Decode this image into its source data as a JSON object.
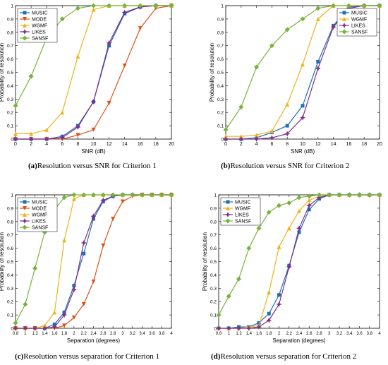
{
  "colors": {
    "MUSIC": "#1f6fb4",
    "MODE": "#d95319",
    "WGMF": "#f0b21c",
    "LIKES": "#7e2f8e",
    "SANSF": "#76b43b"
  },
  "chart_data": [
    {
      "type": "line",
      "caption_label": "(a)",
      "caption": "Resolution versus SNR for Criterion 1",
      "xlabel": "SNR (dB)",
      "ylabel": "Probability of resolution",
      "xlim": [
        0,
        20
      ],
      "ylim": [
        0,
        1
      ],
      "xticks": [
        "0",
        "2",
        "4",
        "6",
        "8",
        "10",
        "12",
        "14",
        "16",
        "18",
        "20"
      ],
      "yticks": [
        "0",
        "0.1",
        "0.2",
        "0.3",
        "0.4",
        "0.5",
        "0.6",
        "0.7",
        "0.8",
        "0.9",
        "1"
      ],
      "legend_position": "top-left",
      "x": [
        0,
        2,
        4,
        6,
        8,
        10,
        12,
        14,
        16,
        18,
        20
      ],
      "series": [
        {
          "name": "MUSIC",
          "marker": "square",
          "values": [
            0,
            0,
            0,
            0.02,
            0.1,
            0.28,
            0.7,
            0.94,
            0.99,
            1,
            1
          ]
        },
        {
          "name": "MODE",
          "marker": "triangle-down",
          "values": [
            0,
            0,
            0,
            0,
            0.03,
            0.07,
            0.27,
            0.55,
            0.83,
            0.98,
            1
          ]
        },
        {
          "name": "WGMF",
          "marker": "triangle-up",
          "values": [
            0.04,
            0.04,
            0.07,
            0.2,
            0.62,
            0.97,
            1,
            1,
            1,
            1,
            1
          ]
        },
        {
          "name": "LIKES",
          "marker": "star",
          "values": [
            0,
            0,
            0,
            0.01,
            0.09,
            0.28,
            0.72,
            0.95,
            0.99,
            1,
            1
          ]
        },
        {
          "name": "SANSF",
          "marker": "diamond",
          "values": [
            0.25,
            0.47,
            0.76,
            0.9,
            0.98,
            1,
            1,
            1,
            1,
            1,
            1
          ]
        }
      ]
    },
    {
      "type": "line",
      "caption_label": "(b)",
      "caption": "Resolution versus SNR for Criterion 2",
      "xlabel": "SNR (dB)",
      "ylabel": "Probability of resolution",
      "xlim": [
        0,
        20
      ],
      "ylim": [
        0,
        1
      ],
      "xticks": [
        "0",
        "2",
        "4",
        "6",
        "8",
        "10",
        "12",
        "14",
        "16",
        "18",
        "20"
      ],
      "yticks": [
        "0",
        "0.1",
        "0.2",
        "0.3",
        "0.4",
        "0.5",
        "0.6",
        "0.7",
        "0.8",
        "0.9",
        "1"
      ],
      "legend_position": "top-right",
      "x": [
        0,
        2,
        4,
        6,
        8,
        10,
        12,
        14,
        16,
        18,
        20
      ],
      "series": [
        {
          "name": "MUSIC",
          "marker": "square",
          "values": [
            0,
            0,
            0.01,
            0.05,
            0.1,
            0.25,
            0.58,
            0.85,
            0.99,
            1,
            1
          ]
        },
        {
          "name": "WGMF",
          "marker": "triangle-up",
          "values": [
            0.02,
            0.02,
            0.03,
            0.06,
            0.26,
            0.56,
            0.9,
            1,
            1,
            1,
            1
          ]
        },
        {
          "name": "LIKES",
          "marker": "star",
          "values": [
            0,
            0,
            0,
            0.01,
            0.04,
            0.16,
            0.53,
            0.84,
            0.98,
            1,
            1
          ]
        },
        {
          "name": "SANSF",
          "marker": "diamond",
          "values": [
            0.07,
            0.24,
            0.54,
            0.7,
            0.82,
            0.9,
            0.98,
            1,
            1,
            1,
            1
          ]
        }
      ]
    },
    {
      "type": "line",
      "caption_label": "(c)",
      "caption": "Resolution versus separation for Criterion 1",
      "xlabel": "Separation (degrees)",
      "ylabel": "Probability of resolution",
      "xlim": [
        0.8,
        4
      ],
      "ylim": [
        0,
        1
      ],
      "xticks": [
        "0.8",
        "1",
        "1.2",
        "1.4",
        "1.6",
        "1.8",
        "2",
        "2.2",
        "2.4",
        "2.6",
        "2.8",
        "3",
        "3.2",
        "3.4",
        "3.6",
        "3.8",
        "4"
      ],
      "yticks": [
        "0",
        "0.1",
        "0.2",
        "0.3",
        "0.4",
        "0.5",
        "0.6",
        "0.7",
        "0.8",
        "0.9",
        "1"
      ],
      "legend_position": "top-left",
      "x": [
        0.8,
        1,
        1.2,
        1.4,
        1.6,
        1.8,
        2,
        2.2,
        2.4,
        2.6,
        2.8,
        3,
        3.2,
        3.4,
        3.6,
        3.8,
        4
      ],
      "series": [
        {
          "name": "MUSIC",
          "marker": "square",
          "values": [
            0,
            0,
            0,
            0,
            0.03,
            0.12,
            0.32,
            0.56,
            0.82,
            0.95,
            0.99,
            1,
            1,
            1,
            1,
            1,
            1
          ]
        },
        {
          "name": "MODE",
          "marker": "triangle-down",
          "values": [
            0,
            0,
            0,
            0,
            0,
            0.02,
            0.08,
            0.18,
            0.35,
            0.62,
            0.82,
            0.95,
            0.99,
            1,
            1,
            1,
            1
          ]
        },
        {
          "name": "WGMF",
          "marker": "triangle-up",
          "values": [
            0,
            0,
            0,
            0.02,
            0.12,
            0.66,
            0.97,
            1,
            1,
            1,
            1,
            1,
            1,
            1,
            1,
            1,
            1
          ]
        },
        {
          "name": "LIKES",
          "marker": "star",
          "values": [
            0,
            0,
            0,
            0,
            0.01,
            0.1,
            0.29,
            0.64,
            0.84,
            0.96,
            0.99,
            1,
            1,
            1,
            1,
            1,
            1
          ]
        },
        {
          "name": "SANSF",
          "marker": "diamond",
          "values": [
            0.04,
            0.18,
            0.45,
            0.72,
            0.89,
            0.98,
            1,
            1,
            1,
            1,
            1,
            1,
            1,
            1,
            1,
            1,
            1
          ]
        }
      ]
    },
    {
      "type": "line",
      "caption_label": "(d)",
      "caption": "Resolution versus separation for Criterion 2",
      "xlabel": "Separation (degrees)",
      "ylabel": "Probability of resolution",
      "xlim": [
        0.8,
        4
      ],
      "ylim": [
        0,
        1
      ],
      "xticks": [
        "0.8",
        "1",
        "1.2",
        "1.4",
        "1.6",
        "1.8",
        "2",
        "2.2",
        "2.4",
        "2.6",
        "2.8",
        "3",
        "3.2",
        "3.4",
        "3.6",
        "3.8",
        "4"
      ],
      "yticks": [
        "0",
        "0.1",
        "0.2",
        "0.3",
        "0.4",
        "0.5",
        "0.6",
        "0.7",
        "0.8",
        "0.9",
        "1"
      ],
      "legend_position": "top-left",
      "x": [
        0.8,
        1,
        1.2,
        1.4,
        1.6,
        1.8,
        2,
        2.2,
        2.4,
        2.6,
        2.8,
        3,
        3.2,
        3.4,
        3.6,
        3.8,
        4
      ],
      "series": [
        {
          "name": "MUSIC",
          "marker": "square",
          "values": [
            0,
            0,
            0.01,
            0.01,
            0.04,
            0.11,
            0.25,
            0.47,
            0.72,
            0.89,
            0.97,
            1,
            1,
            1,
            1,
            1,
            1
          ]
        },
        {
          "name": "WGMF",
          "marker": "triangle-up",
          "values": [
            0,
            0,
            0,
            0.01,
            0.02,
            0.27,
            0.61,
            0.75,
            0.88,
            0.96,
            0.99,
            1,
            1,
            1,
            1,
            1,
            1
          ]
        },
        {
          "name": "LIKES",
          "marker": "star",
          "values": [
            0,
            0,
            0,
            0,
            0.01,
            0.06,
            0.18,
            0.46,
            0.75,
            0.92,
            0.98,
            1,
            1,
            1,
            1,
            1,
            1
          ]
        },
        {
          "name": "SANSF",
          "marker": "diamond",
          "values": [
            0.1,
            0.24,
            0.37,
            0.6,
            0.75,
            0.87,
            0.92,
            0.94,
            0.98,
            0.99,
            1,
            1,
            1,
            1,
            1,
            1,
            1
          ]
        }
      ]
    }
  ]
}
